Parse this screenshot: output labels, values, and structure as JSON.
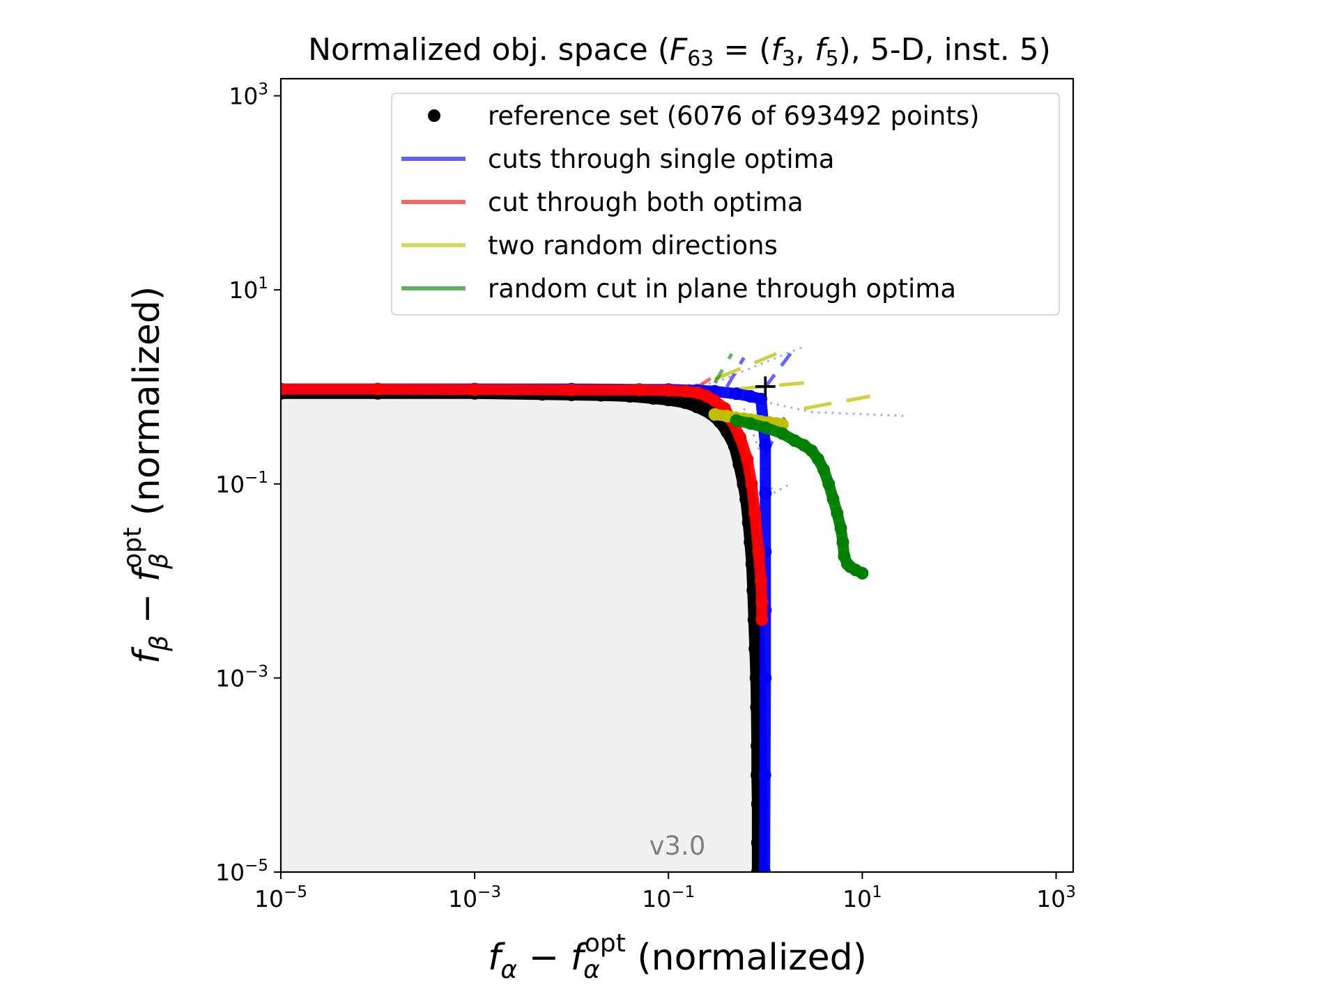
{
  "chart_data": {
    "type": "line",
    "title_parts": [
      "Normalized obj. space (",
      "F",
      "63",
      " = (",
      "f",
      "3",
      ", ",
      "f",
      "5",
      "), 5-D, inst. 5)"
    ],
    "xlabel_parts": [
      "f",
      "α",
      " − ",
      "f",
      "α",
      "opt",
      " (normalized)"
    ],
    "ylabel_parts": [
      "f",
      "β",
      " − ",
      "f",
      "β",
      "opt",
      " (normalized)"
    ],
    "x_scale": "log",
    "y_scale": "log",
    "xlim": [
      1e-05,
      1500
    ],
    "ylim": [
      1e-05,
      1500
    ],
    "x_ticks": [
      {
        "base": "10",
        "exp": "−5",
        "value": 1e-05
      },
      {
        "base": "10",
        "exp": "−3",
        "value": 0.001
      },
      {
        "base": "10",
        "exp": "−1",
        "value": 0.1
      },
      {
        "base": "10",
        "exp": "1",
        "value": 10
      },
      {
        "base": "10",
        "exp": "3",
        "value": 1000
      }
    ],
    "y_ticks": [
      {
        "base": "10",
        "exp": "−5",
        "value": 1e-05
      },
      {
        "base": "10",
        "exp": "−3",
        "value": 0.001
      },
      {
        "base": "10",
        "exp": "−1",
        "value": 0.1
      },
      {
        "base": "10",
        "exp": "1",
        "value": 10
      },
      {
        "base": "10",
        "exp": "3",
        "value": 1000
      }
    ],
    "legend": {
      "placement": "top-right",
      "entries": [
        {
          "label": "reference set (6076 of 693492 points)",
          "marker": "dot",
          "color": "#000000"
        },
        {
          "label": "cuts through single optima",
          "marker": "line",
          "color": "#0000ff"
        },
        {
          "label": "cut through both optima",
          "marker": "line",
          "color": "#ff0000"
        },
        {
          "label": "two random directions",
          "marker": "line",
          "color": "#bfbf00"
        },
        {
          "label": "random cut in plane through optima",
          "marker": "line",
          "color": "#008000"
        }
      ]
    },
    "nadir_marker": {
      "symbol": "+",
      "x": 1.0,
      "y": 1.0
    },
    "dominated_region": {
      "color": "#f0f0f0",
      "x_max": 0.9,
      "y_max": 0.9
    },
    "version": "v3.0",
    "series": [
      {
        "name": "reference set (6076 of 693492 points)",
        "color": "#000000",
        "style": "points",
        "x": [
          1e-05,
          0.0001,
          0.001,
          0.005,
          0.01,
          0.02,
          0.04,
          0.07,
          0.1,
          0.15,
          0.2,
          0.28,
          0.35,
          0.42,
          0.5,
          0.56,
          0.62,
          0.66,
          0.7,
          0.73,
          0.76,
          0.78,
          0.8,
          0.82,
          0.84,
          0.85,
          0.86,
          0.86,
          0.87,
          0.87,
          0.87
        ],
        "y": [
          0.9,
          0.9,
          0.9,
          0.88,
          0.87,
          0.86,
          0.84,
          0.8,
          0.77,
          0.72,
          0.65,
          0.55,
          0.45,
          0.35,
          0.25,
          0.16,
          0.1,
          0.07,
          0.04,
          0.025,
          0.015,
          0.008,
          0.004,
          0.002,
          0.001,
          0.0005,
          0.0002,
          0.0001,
          5e-05,
          2e-05,
          1e-05
        ]
      },
      {
        "name": "cuts through single optima",
        "color": "#0000ff",
        "style": "points",
        "x": [
          1e-05,
          0.0001,
          0.001,
          0.01,
          0.05,
          0.1,
          0.2,
          0.3,
          0.5,
          0.7,
          0.9,
          1.0,
          1.0,
          1.0,
          1.0,
          1.0,
          0.99,
          0.98
        ],
        "y": [
          0.95,
          0.95,
          0.95,
          0.95,
          0.94,
          0.94,
          0.92,
          0.9,
          0.85,
          0.8,
          0.75,
          0.25,
          0.08,
          0.02,
          0.005,
          0.001,
          0.0001,
          1e-05
        ]
      },
      {
        "name": "cut through both optima",
        "color": "#ff0000",
        "style": "points",
        "x": [
          1e-05,
          0.0001,
          0.001,
          0.01,
          0.05,
          0.1,
          0.15,
          0.2,
          0.25,
          0.3,
          0.38,
          0.45,
          0.55,
          0.65,
          0.72,
          0.78,
          0.85,
          0.9,
          0.92,
          0.92
        ],
        "y": [
          0.95,
          0.95,
          0.94,
          0.93,
          0.93,
          0.92,
          0.9,
          0.87,
          0.8,
          0.72,
          0.6,
          0.45,
          0.3,
          0.18,
          0.1,
          0.05,
          0.02,
          0.01,
          0.006,
          0.004
        ]
      },
      {
        "name": "two random directions",
        "color": "#bfbf00",
        "style": "points",
        "x": [
          0.3,
          0.4,
          0.5,
          0.6,
          0.7,
          0.8,
          0.9,
          1.1,
          1.3,
          1.5
        ],
        "y": [
          0.52,
          0.5,
          0.48,
          0.47,
          0.46,
          0.45,
          0.44,
          0.43,
          0.42,
          0.41
        ]
      },
      {
        "name": "random cut in plane through optima",
        "color": "#008000",
        "style": "points",
        "x": [
          0.5,
          0.7,
          1.0,
          1.5,
          2.0,
          2.5,
          3.0,
          3.5,
          4.0,
          4.5,
          5.0,
          5.5,
          6.0,
          6.3,
          6.5,
          7.0,
          7.5,
          8.5,
          10.0
        ],
        "y": [
          0.45,
          0.42,
          0.38,
          0.33,
          0.28,
          0.25,
          0.22,
          0.18,
          0.14,
          0.1,
          0.07,
          0.05,
          0.035,
          0.025,
          0.018,
          0.015,
          0.014,
          0.013,
          0.012
        ]
      }
    ],
    "yellow_dashed_segments": [
      {
        "x": [
          0.3,
          1.3
        ],
        "y": [
          1.2,
          2.2
        ]
      },
      {
        "x": [
          0.5,
          2.5
        ],
        "y": [
          0.95,
          1.1
        ]
      },
      {
        "x": [
          2.5,
          12.0
        ],
        "y": [
          0.6,
          0.8
        ]
      }
    ],
    "green_dashed_segments": [
      {
        "x": [
          0.3,
          0.45
        ],
        "y": [
          1.1,
          2.2
        ]
      },
      {
        "x": [
          3.5,
          5.0
        ],
        "y": [
          0.2,
          0.1
        ]
      }
    ],
    "faint_cut_segments": [
      {
        "color": "#0000ff",
        "x": [
          1.0,
          1.6
        ],
        "y": [
          0.2,
          0.5
        ]
      },
      {
        "color": "#0000ff",
        "x": [
          1.0,
          0.85
        ],
        "y": [
          0.2,
          0.04
        ]
      },
      {
        "color": "#0000ff",
        "x": [
          0.4,
          0.6
        ],
        "y": [
          1.0,
          2.0
        ]
      },
      {
        "color": "#0000ff",
        "x": [
          1.0,
          2.0
        ],
        "y": [
          1.0,
          2.5
        ]
      },
      {
        "color": "#ff0000",
        "x": [
          0.2,
          0.3
        ],
        "y": [
          1.0,
          1.3
        ]
      }
    ],
    "faint_dotted_paths": [
      {
        "color": "#0000ff",
        "x": [
          0.05,
          0.3,
          1.0,
          2.5
        ],
        "y": [
          0.95,
          1.1,
          1.8,
          2.6
        ]
      },
      {
        "color": "#0000ff",
        "x": [
          0.3,
          1.0,
          3.0,
          30.0
        ],
        "y": [
          0.8,
          0.7,
          0.55,
          0.5
        ]
      },
      {
        "color": "#0000ff",
        "x": [
          0.6,
          0.9,
          1.2,
          1.8
        ],
        "y": [
          0.6,
          0.2,
          0.08,
          0.1
        ]
      }
    ]
  }
}
